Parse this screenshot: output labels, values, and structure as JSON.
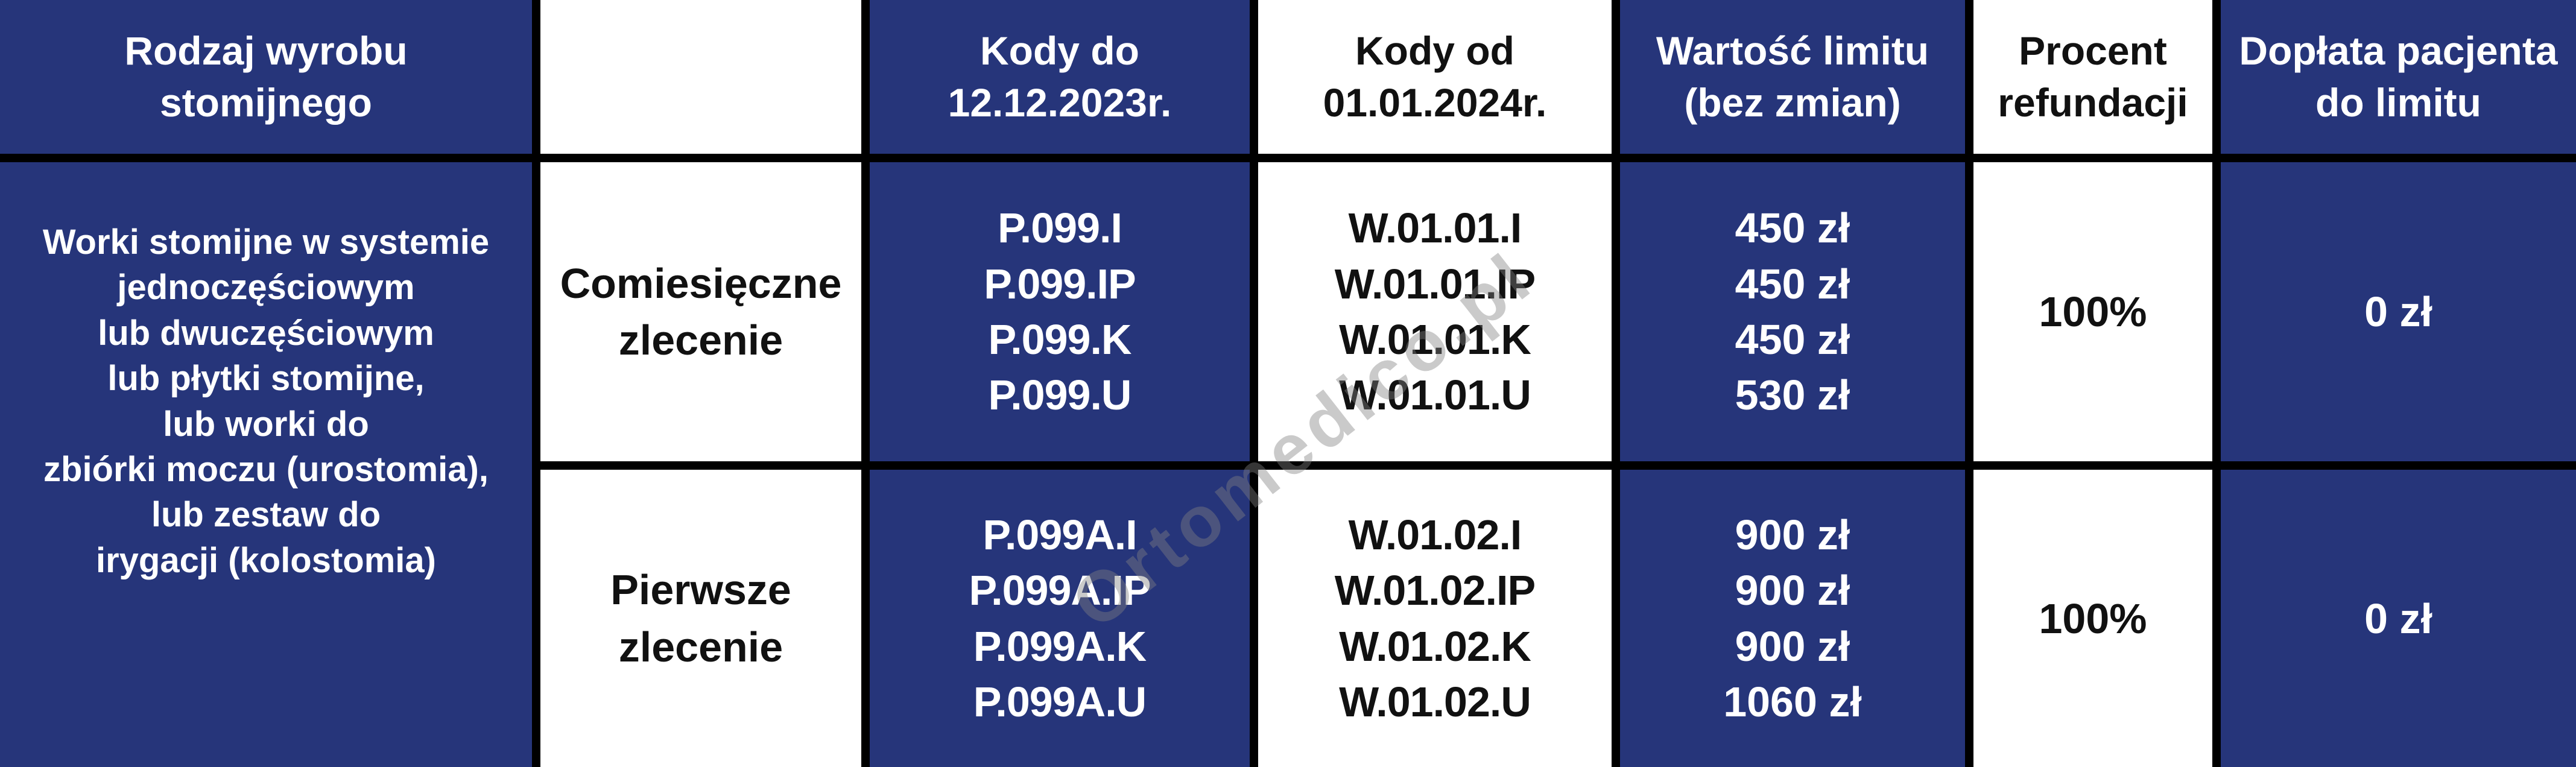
{
  "colors": {
    "blue": "#26357a",
    "border": "#000000",
    "white": "#ffffff",
    "watermark_gray": "#808080"
  },
  "header": {
    "product_type": [
      "Rodzaj wyrobu",
      "stomijnego"
    ],
    "empty": "",
    "codes_until": [
      "Kody do",
      "12.12.2023r."
    ],
    "codes_from": [
      "Kody od",
      "01.01.2024r."
    ],
    "limit_value": [
      "Wartość limitu",
      "(bez zmian)"
    ],
    "refund_percent": [
      "Procent",
      "refundacji"
    ],
    "patient_copay": [
      "Dopłata pacjenta",
      "do limitu"
    ]
  },
  "product_group": {
    "description": [
      "Worki stomijne w systemie",
      "jednoczęściowym",
      "lub dwuczęściowym",
      "lub płytki stomijne,",
      "lub worki do",
      "zbiórki moczu (urostomia),",
      "lub zestaw do",
      "irygacji (kolostomia)"
    ]
  },
  "rows": [
    {
      "order_type": [
        "Comiesięczne",
        "zlecenie"
      ],
      "codes_until": [
        "P.099.I",
        "P.099.IP",
        "P.099.K",
        "P.099.U"
      ],
      "codes_from": [
        "W.01.01.I",
        "W.01.01.IP",
        "W.01.01.K",
        "W.01.01.U"
      ],
      "limit_values": [
        "450 zł",
        "450 zł",
        "450 zł",
        "530 zł"
      ],
      "refund_percent": "100%",
      "patient_copay": "0 zł"
    },
    {
      "order_type": [
        "Pierwsze",
        "zlecenie"
      ],
      "codes_until": [
        "P.099A.I",
        "P.099A.IP",
        "P.099A.K",
        "P.099A.U"
      ],
      "codes_from": [
        "W.01.02.I",
        "W.01.02.IP",
        "W.01.02.K",
        "W.01.02.U"
      ],
      "limit_values": [
        "900 zł",
        "900 zł",
        "900 zł",
        "1060 zł"
      ],
      "refund_percent": "100%",
      "patient_copay": "0 zł"
    }
  ],
  "watermark": {
    "text": "Ortomedico.pl"
  }
}
